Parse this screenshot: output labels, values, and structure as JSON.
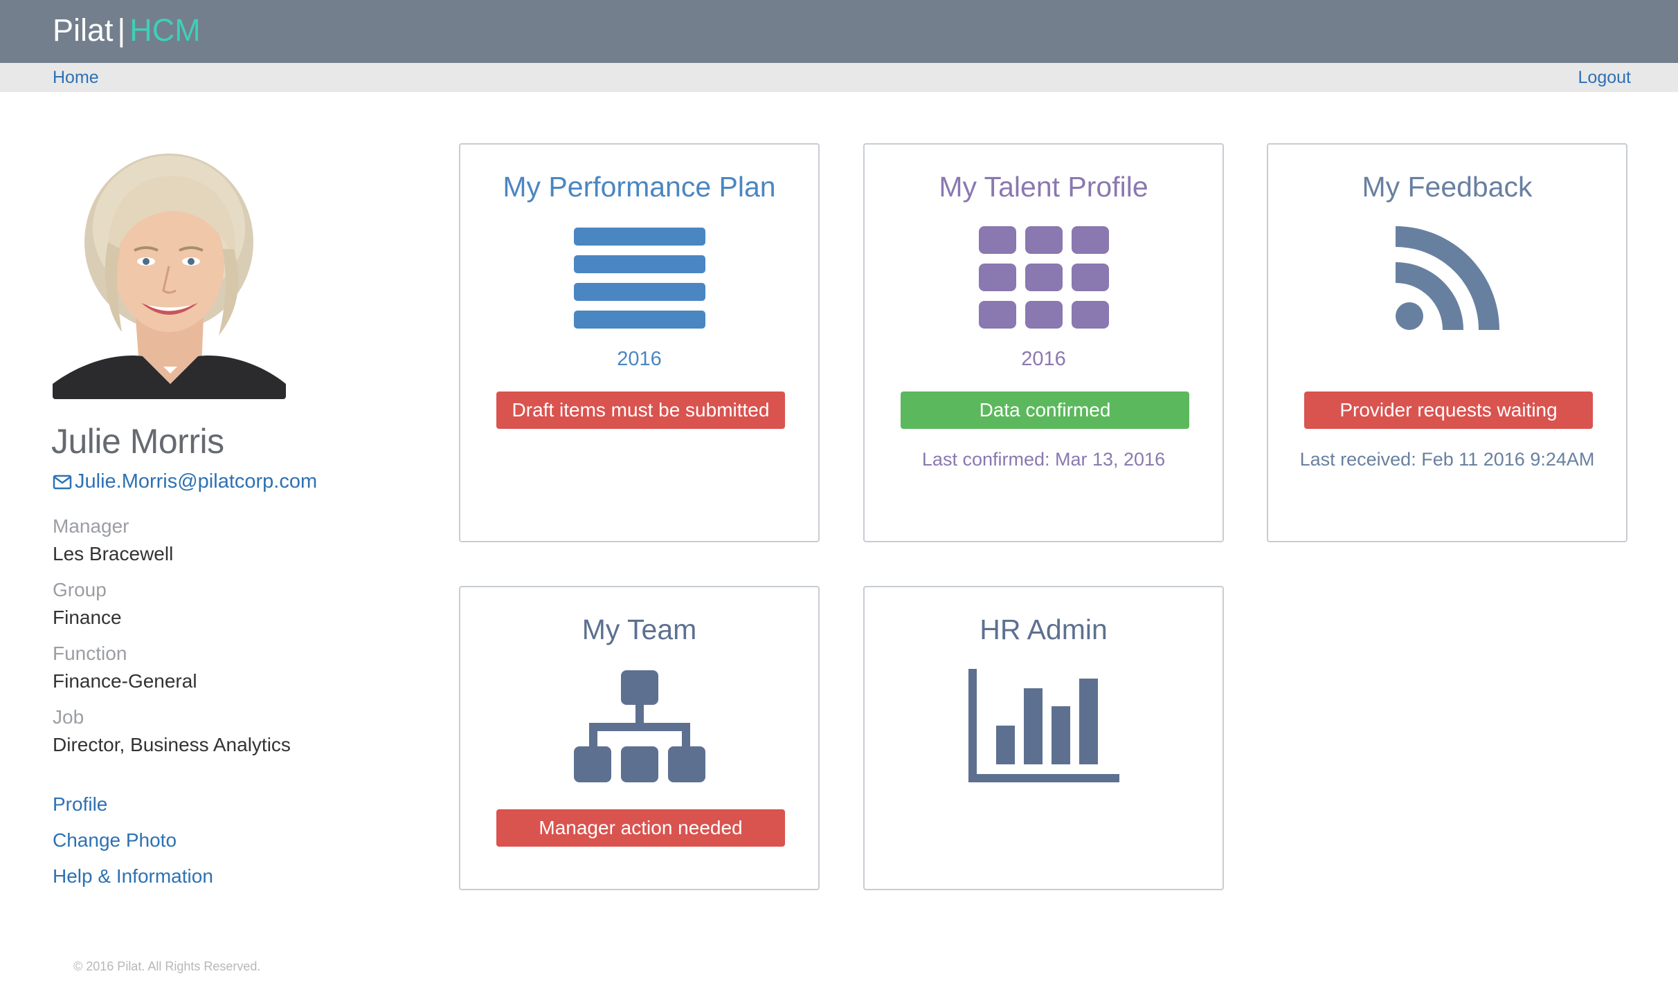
{
  "brand": {
    "name": "Pilat",
    "product": "HCM"
  },
  "nav": {
    "home": "Home",
    "logout": "Logout"
  },
  "profile": {
    "name": "Julie Morris",
    "email": "Julie.Morris@pilatcorp.com",
    "fields": [
      {
        "label": "Manager",
        "value": "Les Bracewell"
      },
      {
        "label": "Group",
        "value": "Finance"
      },
      {
        "label": "Function",
        "value": "Finance-General"
      },
      {
        "label": "Job",
        "value": "Director, Business Analytics"
      }
    ],
    "links": [
      "Profile",
      "Change Photo",
      "Help & Information"
    ]
  },
  "cards": {
    "performance": {
      "title": "My Performance Plan",
      "year": "2016",
      "badge": "Draft items must be submitted",
      "icon": "list-icon",
      "color": "#4a86c1"
    },
    "talent": {
      "title": "My Talent Profile",
      "year": "2016",
      "badge": "Data confirmed",
      "note": "Last confirmed: Mar 13, 2016",
      "icon": "grid-icon",
      "color": "#8a78b0"
    },
    "feedback": {
      "title": "My Feedback",
      "badge": "Provider requests waiting",
      "note": "Last received: Feb 11 2016 9:24AM",
      "icon": "rss-icon",
      "color": "#6880a0"
    },
    "team": {
      "title": "My Team",
      "badge": "Manager action needed",
      "icon": "org-chart-icon",
      "color": "#5d7090"
    },
    "hradmin": {
      "title": "HR Admin",
      "icon": "bar-chart-icon",
      "color": "#5d7090"
    }
  },
  "colors": {
    "header": "#737f8d",
    "brand_accent": "#3fcfb8",
    "link": "#2d71b3",
    "danger": "#d9534f",
    "success": "#5cb85c"
  },
  "footer": "© 2016 Pilat. All Rights Reserved."
}
